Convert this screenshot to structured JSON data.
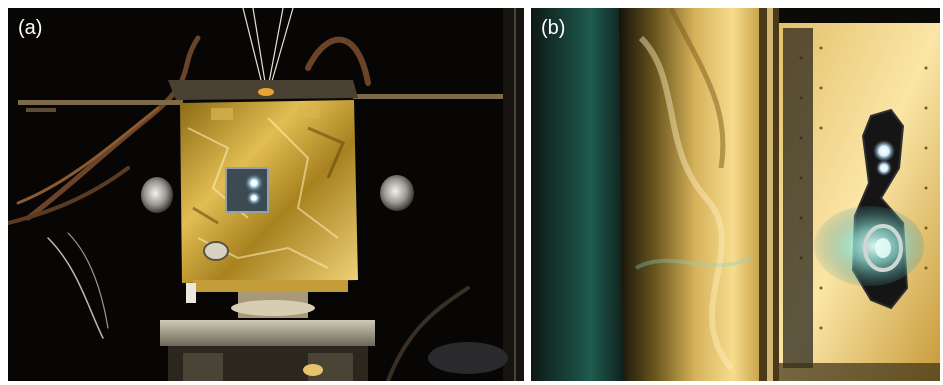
{
  "panels": [
    {
      "label": "(a)"
    },
    {
      "label": "(b)"
    }
  ],
  "colors": {
    "background": "#ffffff",
    "dark": "#070604",
    "gold": "#c9a233",
    "gold_light": "#f4d77b",
    "glow": "#d9f2ff",
    "plume": "#8fe3d7"
  }
}
